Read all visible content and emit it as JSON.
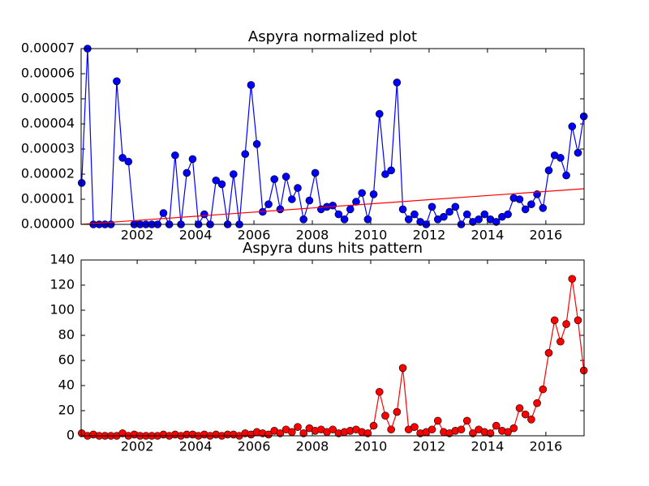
{
  "chart_data": [
    {
      "type": "line",
      "title": "Aspyra normalized plot",
      "color": "#0000ff",
      "marker": "o",
      "xlim": [
        2000.08,
        2017.31
      ],
      "xticks": [
        2002,
        2004,
        2006,
        2008,
        2010,
        2012,
        2014,
        2016
      ],
      "ylim": [
        0,
        7e-05
      ],
      "yticks": [
        {
          "value": 0,
          "label": "0.00000"
        },
        {
          "value": 1e-05,
          "label": "0.00001"
        },
        {
          "value": 2e-05,
          "label": "0.00002"
        },
        {
          "value": 3e-05,
          "label": "0.00003"
        },
        {
          "value": 4e-05,
          "label": "0.00004"
        },
        {
          "value": 5e-05,
          "label": "0.00005"
        },
        {
          "value": 6e-05,
          "label": "0.00006"
        },
        {
          "value": 7e-05,
          "label": "0.00007"
        }
      ],
      "x": [
        2000.1,
        2000.3,
        2000.5,
        2000.7,
        2000.9,
        2001.1,
        2001.3,
        2001.5,
        2001.7,
        2001.9,
        2002.1,
        2002.3,
        2002.5,
        2002.7,
        2002.9,
        2003.1,
        2003.3,
        2003.5,
        2003.7,
        2003.9,
        2004.1,
        2004.3,
        2004.5,
        2004.7,
        2004.9,
        2005.1,
        2005.3,
        2005.5,
        2005.7,
        2005.9,
        2006.1,
        2006.3,
        2006.5,
        2006.7,
        2006.9,
        2007.1,
        2007.3,
        2007.5,
        2007.7,
        2007.9,
        2008.1,
        2008.3,
        2008.5,
        2008.7,
        2008.9,
        2009.1,
        2009.3,
        2009.5,
        2009.7,
        2009.9,
        2010.1,
        2010.3,
        2010.5,
        2010.7,
        2010.9,
        2011.1,
        2011.3,
        2011.5,
        2011.7,
        2011.9,
        2012.1,
        2012.3,
        2012.5,
        2012.7,
        2012.9,
        2013.1,
        2013.3,
        2013.5,
        2013.7,
        2013.9,
        2014.1,
        2014.3,
        2014.5,
        2014.7,
        2014.9,
        2015.1,
        2015.3,
        2015.5,
        2015.7,
        2015.9,
        2016.1,
        2016.3,
        2016.5,
        2016.7,
        2016.9,
        2017.1,
        2017.3
      ],
      "values": [
        1.65e-05,
        7e-05,
        0,
        0,
        0,
        0,
        5.7e-05,
        2.65e-05,
        2.5e-05,
        0,
        0,
        0,
        0,
        0,
        4.5e-06,
        0,
        2.75e-05,
        0,
        2.05e-05,
        2.6e-05,
        0,
        4e-06,
        0,
        1.75e-05,
        1.6e-05,
        0,
        2e-05,
        0,
        2.8e-05,
        5.55e-05,
        3.2e-05,
        5e-06,
        8e-06,
        1.8e-05,
        6e-06,
        1.9e-05,
        1e-05,
        1.45e-05,
        2e-06,
        9.5e-06,
        2.05e-05,
        6e-06,
        7e-06,
        7.5e-06,
        4e-06,
        2e-06,
        6e-06,
        9e-06,
        1.25e-05,
        2e-06,
        1.2e-05,
        4.4e-05,
        2e-05,
        2.15e-05,
        5.65e-05,
        6e-06,
        2e-06,
        4e-06,
        1e-06,
        0,
        7e-06,
        2e-06,
        3e-06,
        5e-06,
        7e-06,
        0,
        4e-06,
        1e-06,
        2e-06,
        4e-06,
        2e-06,
        1e-06,
        3e-06,
        4e-06,
        1.05e-05,
        1e-05,
        6e-06,
        8e-06,
        1.2e-05,
        6.5e-06,
        2.15e-05,
        2.75e-05,
        2.65e-05,
        1.95e-05,
        3.9e-05,
        2.85e-05,
        4.3e-05
      ],
      "trend": {
        "x": [
          2000.08,
          2017.31
        ],
        "values": [
          0,
          1.42e-05
        ],
        "color": "#ff0000"
      }
    },
    {
      "type": "line",
      "title": "Aspyra duns hits pattern",
      "color": "#ff0000",
      "marker": "o",
      "xlim": [
        2000.08,
        2017.31
      ],
      "xticks": [
        2002,
        2004,
        2006,
        2008,
        2010,
        2012,
        2014,
        2016
      ],
      "ylim": [
        0,
        140
      ],
      "yticks": [
        0,
        20,
        40,
        60,
        80,
        100,
        120,
        140
      ],
      "x": [
        2000.1,
        2000.3,
        2000.5,
        2000.7,
        2000.9,
        2001.1,
        2001.3,
        2001.5,
        2001.7,
        2001.9,
        2002.1,
        2002.3,
        2002.5,
        2002.7,
        2002.9,
        2003.1,
        2003.3,
        2003.5,
        2003.7,
        2003.9,
        2004.1,
        2004.3,
        2004.5,
        2004.7,
        2004.9,
        2005.1,
        2005.3,
        2005.5,
        2005.7,
        2005.9,
        2006.1,
        2006.3,
        2006.5,
        2006.7,
        2006.9,
        2007.1,
        2007.3,
        2007.5,
        2007.7,
        2007.9,
        2008.1,
        2008.3,
        2008.5,
        2008.7,
        2008.9,
        2009.1,
        2009.3,
        2009.5,
        2009.7,
        2009.9,
        2010.1,
        2010.3,
        2010.5,
        2010.7,
        2010.9,
        2011.1,
        2011.3,
        2011.5,
        2011.7,
        2011.9,
        2012.1,
        2012.3,
        2012.5,
        2012.7,
        2012.9,
        2013.1,
        2013.3,
        2013.5,
        2013.7,
        2013.9,
        2014.1,
        2014.3,
        2014.5,
        2014.7,
        2014.9,
        2015.1,
        2015.3,
        2015.5,
        2015.7,
        2015.9,
        2016.1,
        2016.3,
        2016.5,
        2016.7,
        2016.9,
        2017.1,
        2017.3
      ],
      "values": [
        2,
        0,
        1,
        0,
        0,
        0,
        0,
        2,
        0,
        1,
        0,
        0,
        0,
        0,
        1,
        0,
        1,
        0,
        1,
        1,
        0,
        1,
        0,
        1,
        0,
        1,
        1,
        0,
        2,
        1,
        3,
        2,
        1,
        4,
        2,
        5,
        3,
        7,
        2,
        6,
        4,
        5,
        3,
        5,
        2,
        3,
        4,
        5,
        3,
        2,
        8,
        35,
        16,
        5,
        19,
        54,
        5,
        7,
        2,
        3,
        5,
        12,
        3,
        2,
        4,
        5,
        12,
        2,
        5,
        3,
        2,
        8,
        4,
        3,
        6,
        22,
        17,
        13,
        26,
        37,
        66,
        92,
        75,
        89,
        125,
        92,
        52
      ]
    }
  ]
}
